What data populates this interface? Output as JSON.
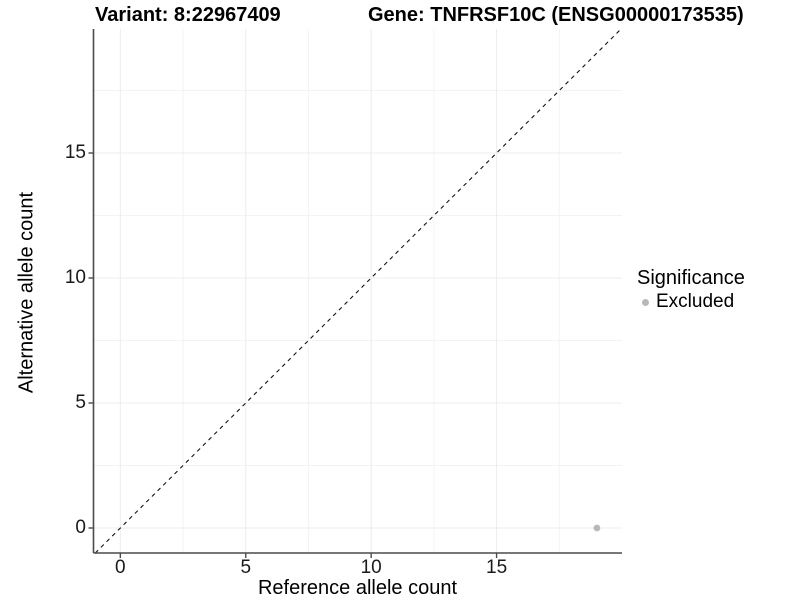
{
  "header": {
    "variant_title": "Variant: 8:22967409",
    "gene_title": "Gene: TNFRSF10C (ENSG00000173535)"
  },
  "chart_data": {
    "type": "scatter",
    "title": "Variant: 8:22967409   Gene: TNFRSF10C (ENSG00000173535)",
    "xlabel": "Reference allele count",
    "ylabel": "Alternative allele count",
    "xlim": [
      -1.07,
      20.0
    ],
    "ylim": [
      -1.0,
      19.96
    ],
    "x_ticks": [
      0,
      5,
      10,
      15
    ],
    "y_ticks": [
      0,
      5,
      10,
      15
    ],
    "x_minor_ticks": [
      2.5,
      7.5,
      12.5,
      17.5
    ],
    "y_minor_ticks": [
      2.5,
      7.5,
      12.5,
      17.5
    ],
    "grid": "major+minor",
    "legend_position": "right",
    "identity_line": {
      "shown": true,
      "style": "dashed",
      "color": "#141414",
      "equation": "y = x"
    },
    "series": [
      {
        "name": "Excluded",
        "color": "#b8b8b8",
        "points": [
          {
            "x": 19,
            "y": 0
          }
        ]
      }
    ]
  },
  "legend": {
    "title": "Significance",
    "items": [
      {
        "label": "Excluded",
        "color": "#b8b8b8"
      }
    ]
  },
  "colors": {
    "background": "#ffffff",
    "axis_line": "#4a4a4a",
    "grid_major": "#ececec",
    "grid_minor": "#f3f3f3",
    "tick_label": "#1a1a1a",
    "point": "#b8b8b8"
  }
}
